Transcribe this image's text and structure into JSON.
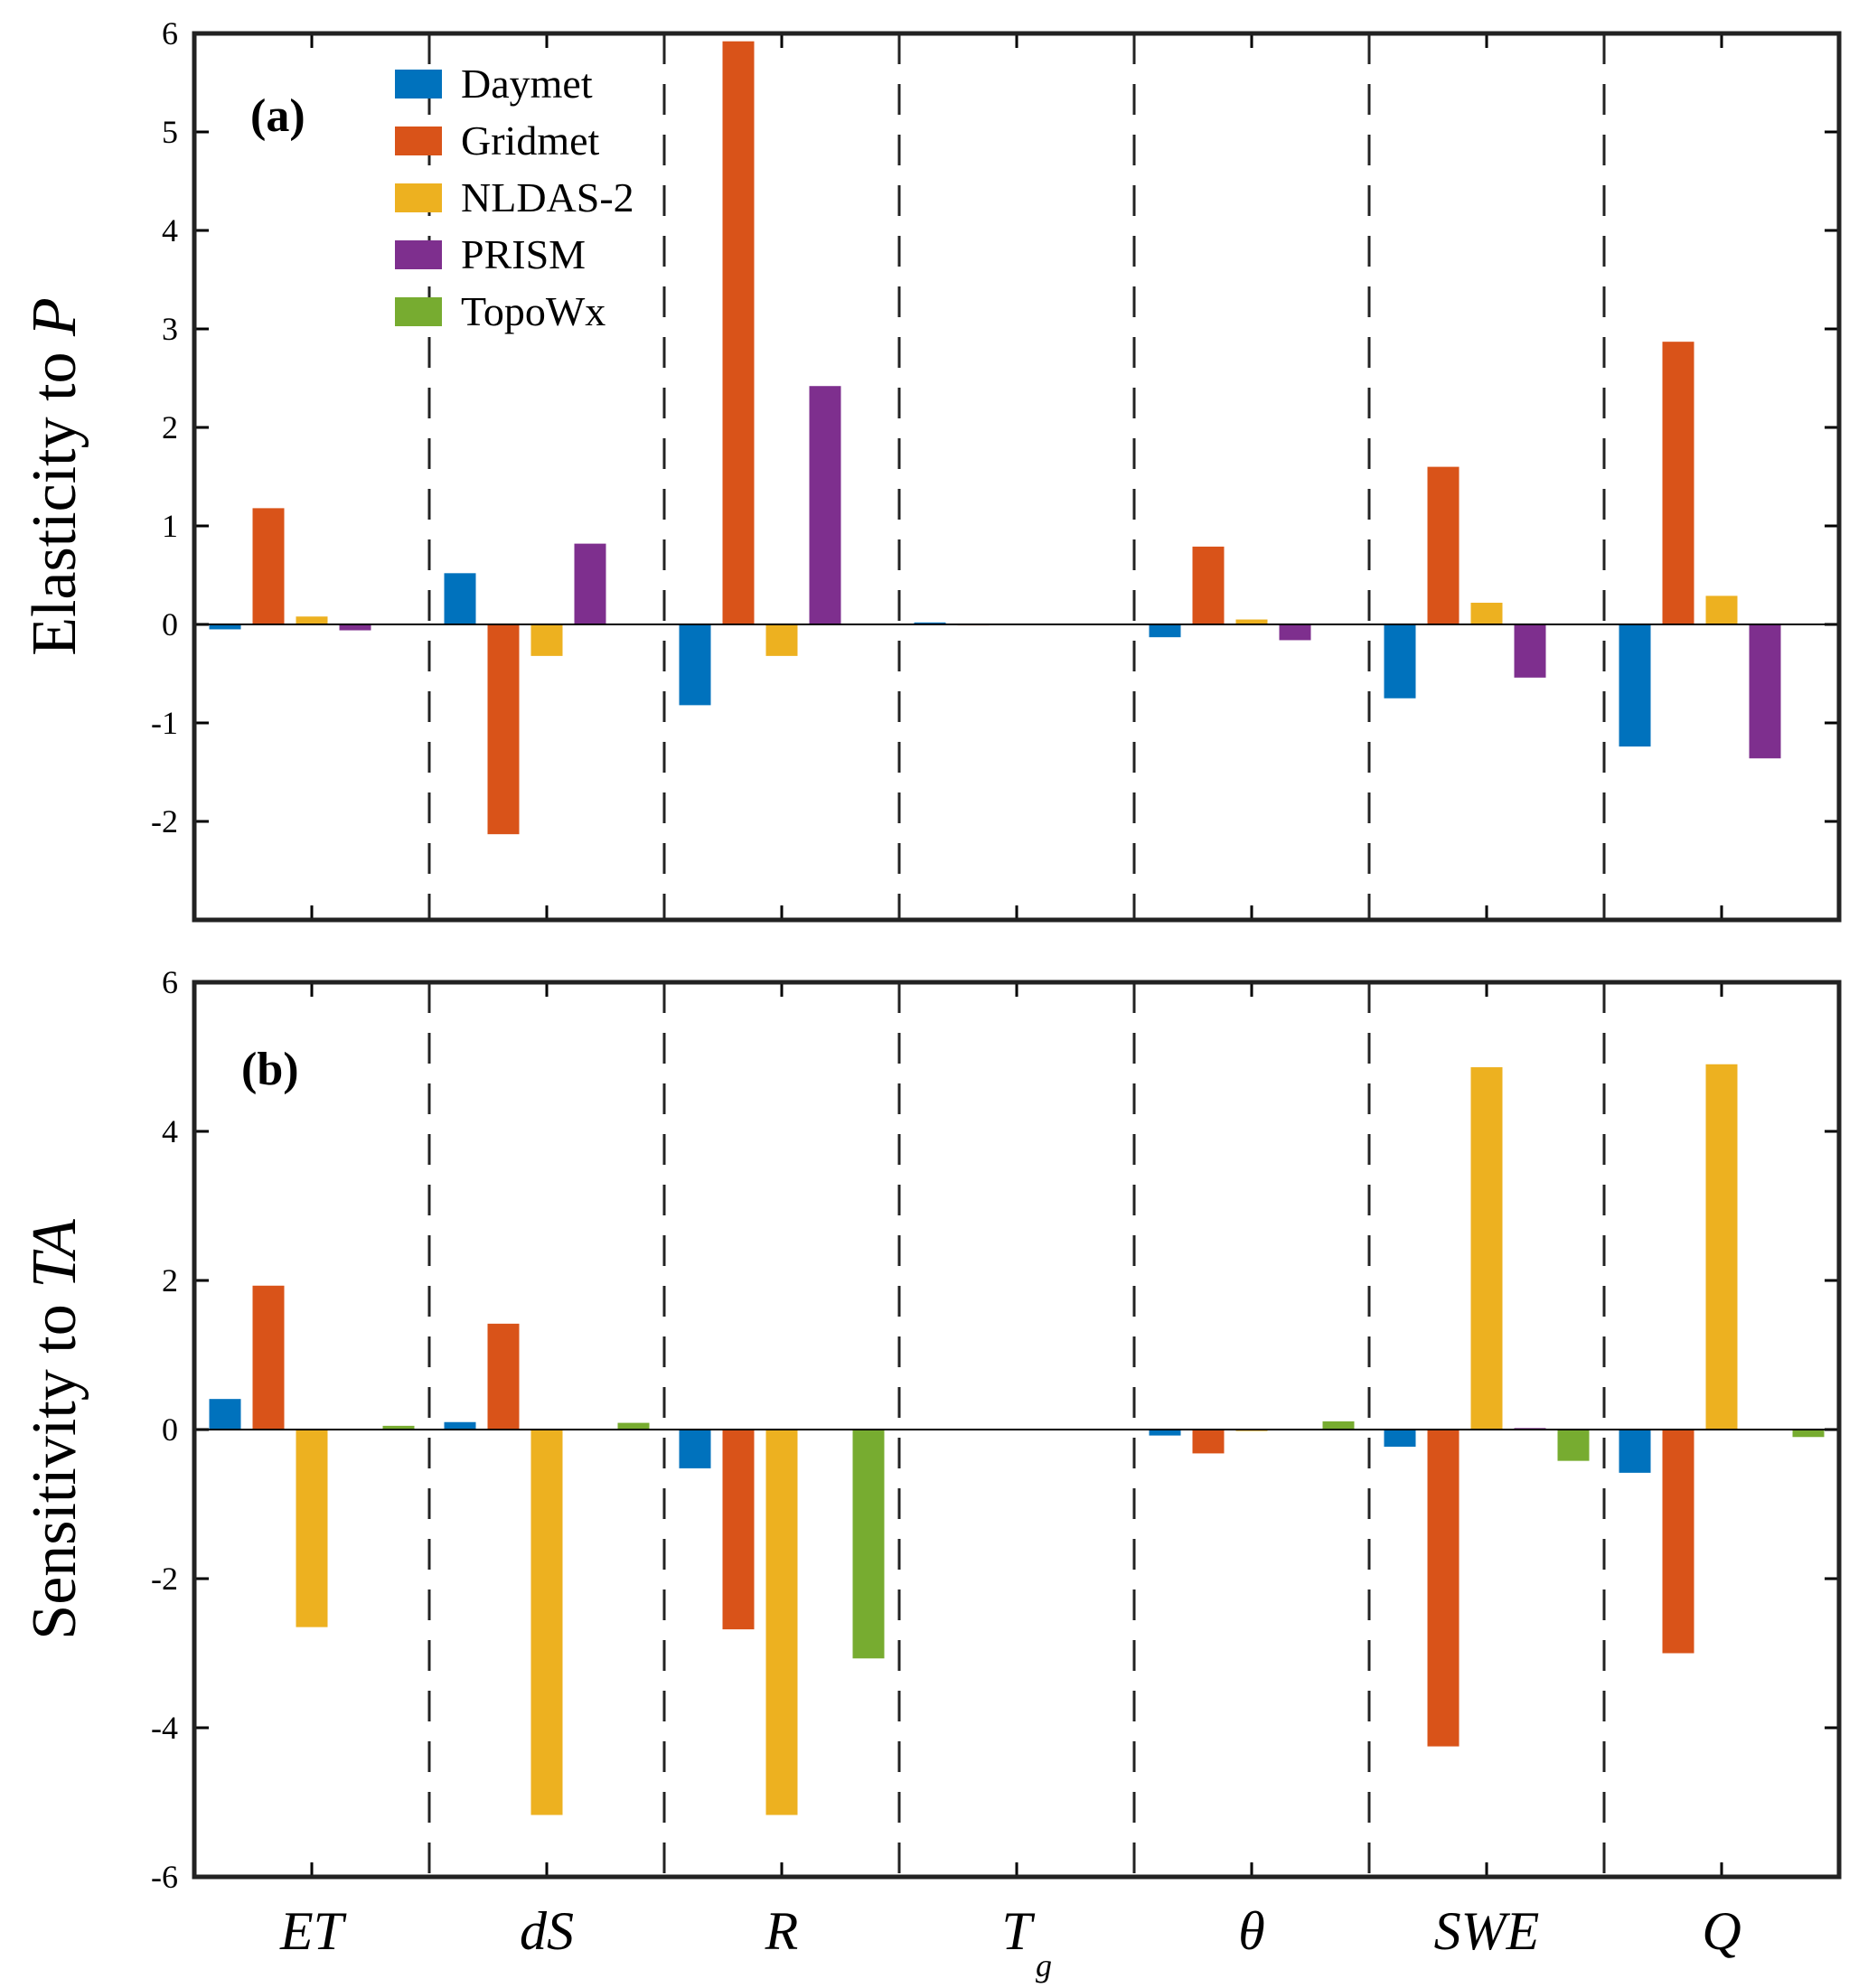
{
  "chart_data": [
    {
      "type": "bar",
      "panel": "(a)",
      "ylabel_prefix": "Elasticity to ",
      "ylabel_var": "P",
      "ylim": [
        -3,
        6
      ],
      "yticks": [
        6,
        5,
        4,
        3,
        2,
        1,
        0,
        -1,
        -2
      ],
      "categories": [
        "ET",
        "dS",
        "R",
        "T",
        "θ",
        "SWE",
        "Q"
      ],
      "category_subscripts": [
        "",
        "",
        "",
        "g",
        "",
        "",
        ""
      ],
      "series": [
        {
          "name": "Daymet",
          "color": "#0072BD",
          "values": [
            -0.05,
            0.52,
            -0.82,
            0.02,
            -0.13,
            -0.75,
            -1.24
          ]
        },
        {
          "name": "Gridmet",
          "color": "#D95319",
          "values": [
            1.18,
            -2.13,
            5.92,
            -0.01,
            0.79,
            1.6,
            2.87
          ]
        },
        {
          "name": "NLDAS-2",
          "color": "#EDB120",
          "values": [
            0.08,
            -0.32,
            -0.32,
            0.0,
            0.05,
            0.22,
            0.29
          ]
        },
        {
          "name": "PRISM",
          "color": "#7E2F8E",
          "values": [
            -0.06,
            0.82,
            2.42,
            0.0,
            -0.16,
            -0.54,
            -1.36
          ]
        },
        {
          "name": "TopoWx",
          "color": "#77AC30",
          "values": [
            0.0,
            0.0,
            0.0,
            0.0,
            0.0,
            0.0,
            0.0
          ]
        }
      ],
      "legend": "top-left"
    },
    {
      "type": "bar",
      "panel": "(b)",
      "ylabel_prefix": "Sensitivity to ",
      "ylabel_var": "TA",
      "ylim": [
        -6,
        6
      ],
      "yticks": [
        6,
        4,
        2,
        0,
        -2,
        -4,
        -6
      ],
      "categories": [
        "ET",
        "dS",
        "R",
        "T",
        "θ",
        "SWE",
        "Q"
      ],
      "category_subscripts": [
        "",
        "",
        "",
        "g",
        "",
        "",
        ""
      ],
      "series": [
        {
          "name": "Daymet",
          "color": "#0072BD",
          "values": [
            0.41,
            0.1,
            -0.52,
            0.0,
            -0.08,
            -0.23,
            -0.58
          ]
        },
        {
          "name": "Gridmet",
          "color": "#D95319",
          "values": [
            1.93,
            1.42,
            -2.68,
            0.01,
            -0.32,
            -4.25,
            -3.0
          ]
        },
        {
          "name": "NLDAS-2",
          "color": "#EDB120",
          "values": [
            -2.65,
            -5.17,
            -5.17,
            0.0,
            -0.02,
            4.86,
            4.9
          ]
        },
        {
          "name": "PRISM",
          "color": "#7E2F8E",
          "values": [
            0.0,
            0.0,
            0.0,
            0.0,
            0.0,
            0.02,
            0.0
          ]
        },
        {
          "name": "TopoWx",
          "color": "#77AC30",
          "values": [
            0.05,
            0.09,
            -3.07,
            0.0,
            0.11,
            -0.42,
            -0.1
          ]
        }
      ]
    }
  ]
}
